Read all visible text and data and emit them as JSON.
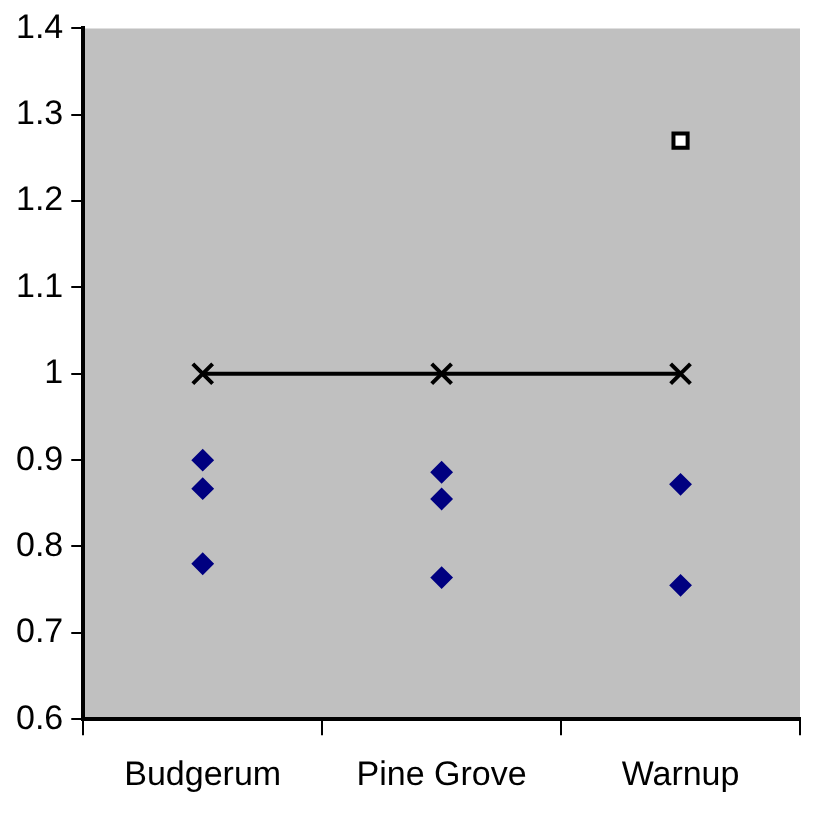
{
  "chart_data": {
    "type": "scatter",
    "categories": [
      "Budgerum",
      "Pine Grove",
      "Warnup"
    ],
    "ylim": [
      0.6,
      1.4
    ],
    "yticks": [
      0.6,
      0.7,
      0.8,
      0.9,
      1,
      1.1,
      1.2,
      1.3,
      1.4
    ],
    "grid": false,
    "legend": false,
    "series": [
      {
        "type": "scatter",
        "marker": "diamond",
        "color": "#000080",
        "x": [
          "Budgerum",
          "Budgerum",
          "Budgerum",
          "Pine Grove",
          "Pine Grove",
          "Pine Grove",
          "Warnup",
          "Warnup"
        ],
        "values": [
          0.9,
          0.867,
          0.78,
          0.886,
          0.855,
          0.764,
          0.872,
          0.755
        ]
      },
      {
        "type": "line",
        "marker": "cross",
        "color": "#000000",
        "line_style": "solid",
        "values": [
          1,
          1,
          1
        ]
      },
      {
        "type": "scatter",
        "marker": "square",
        "color": "#ffffff",
        "x": [
          "Warnup"
        ],
        "values": [
          1.27
        ]
      }
    ]
  }
}
